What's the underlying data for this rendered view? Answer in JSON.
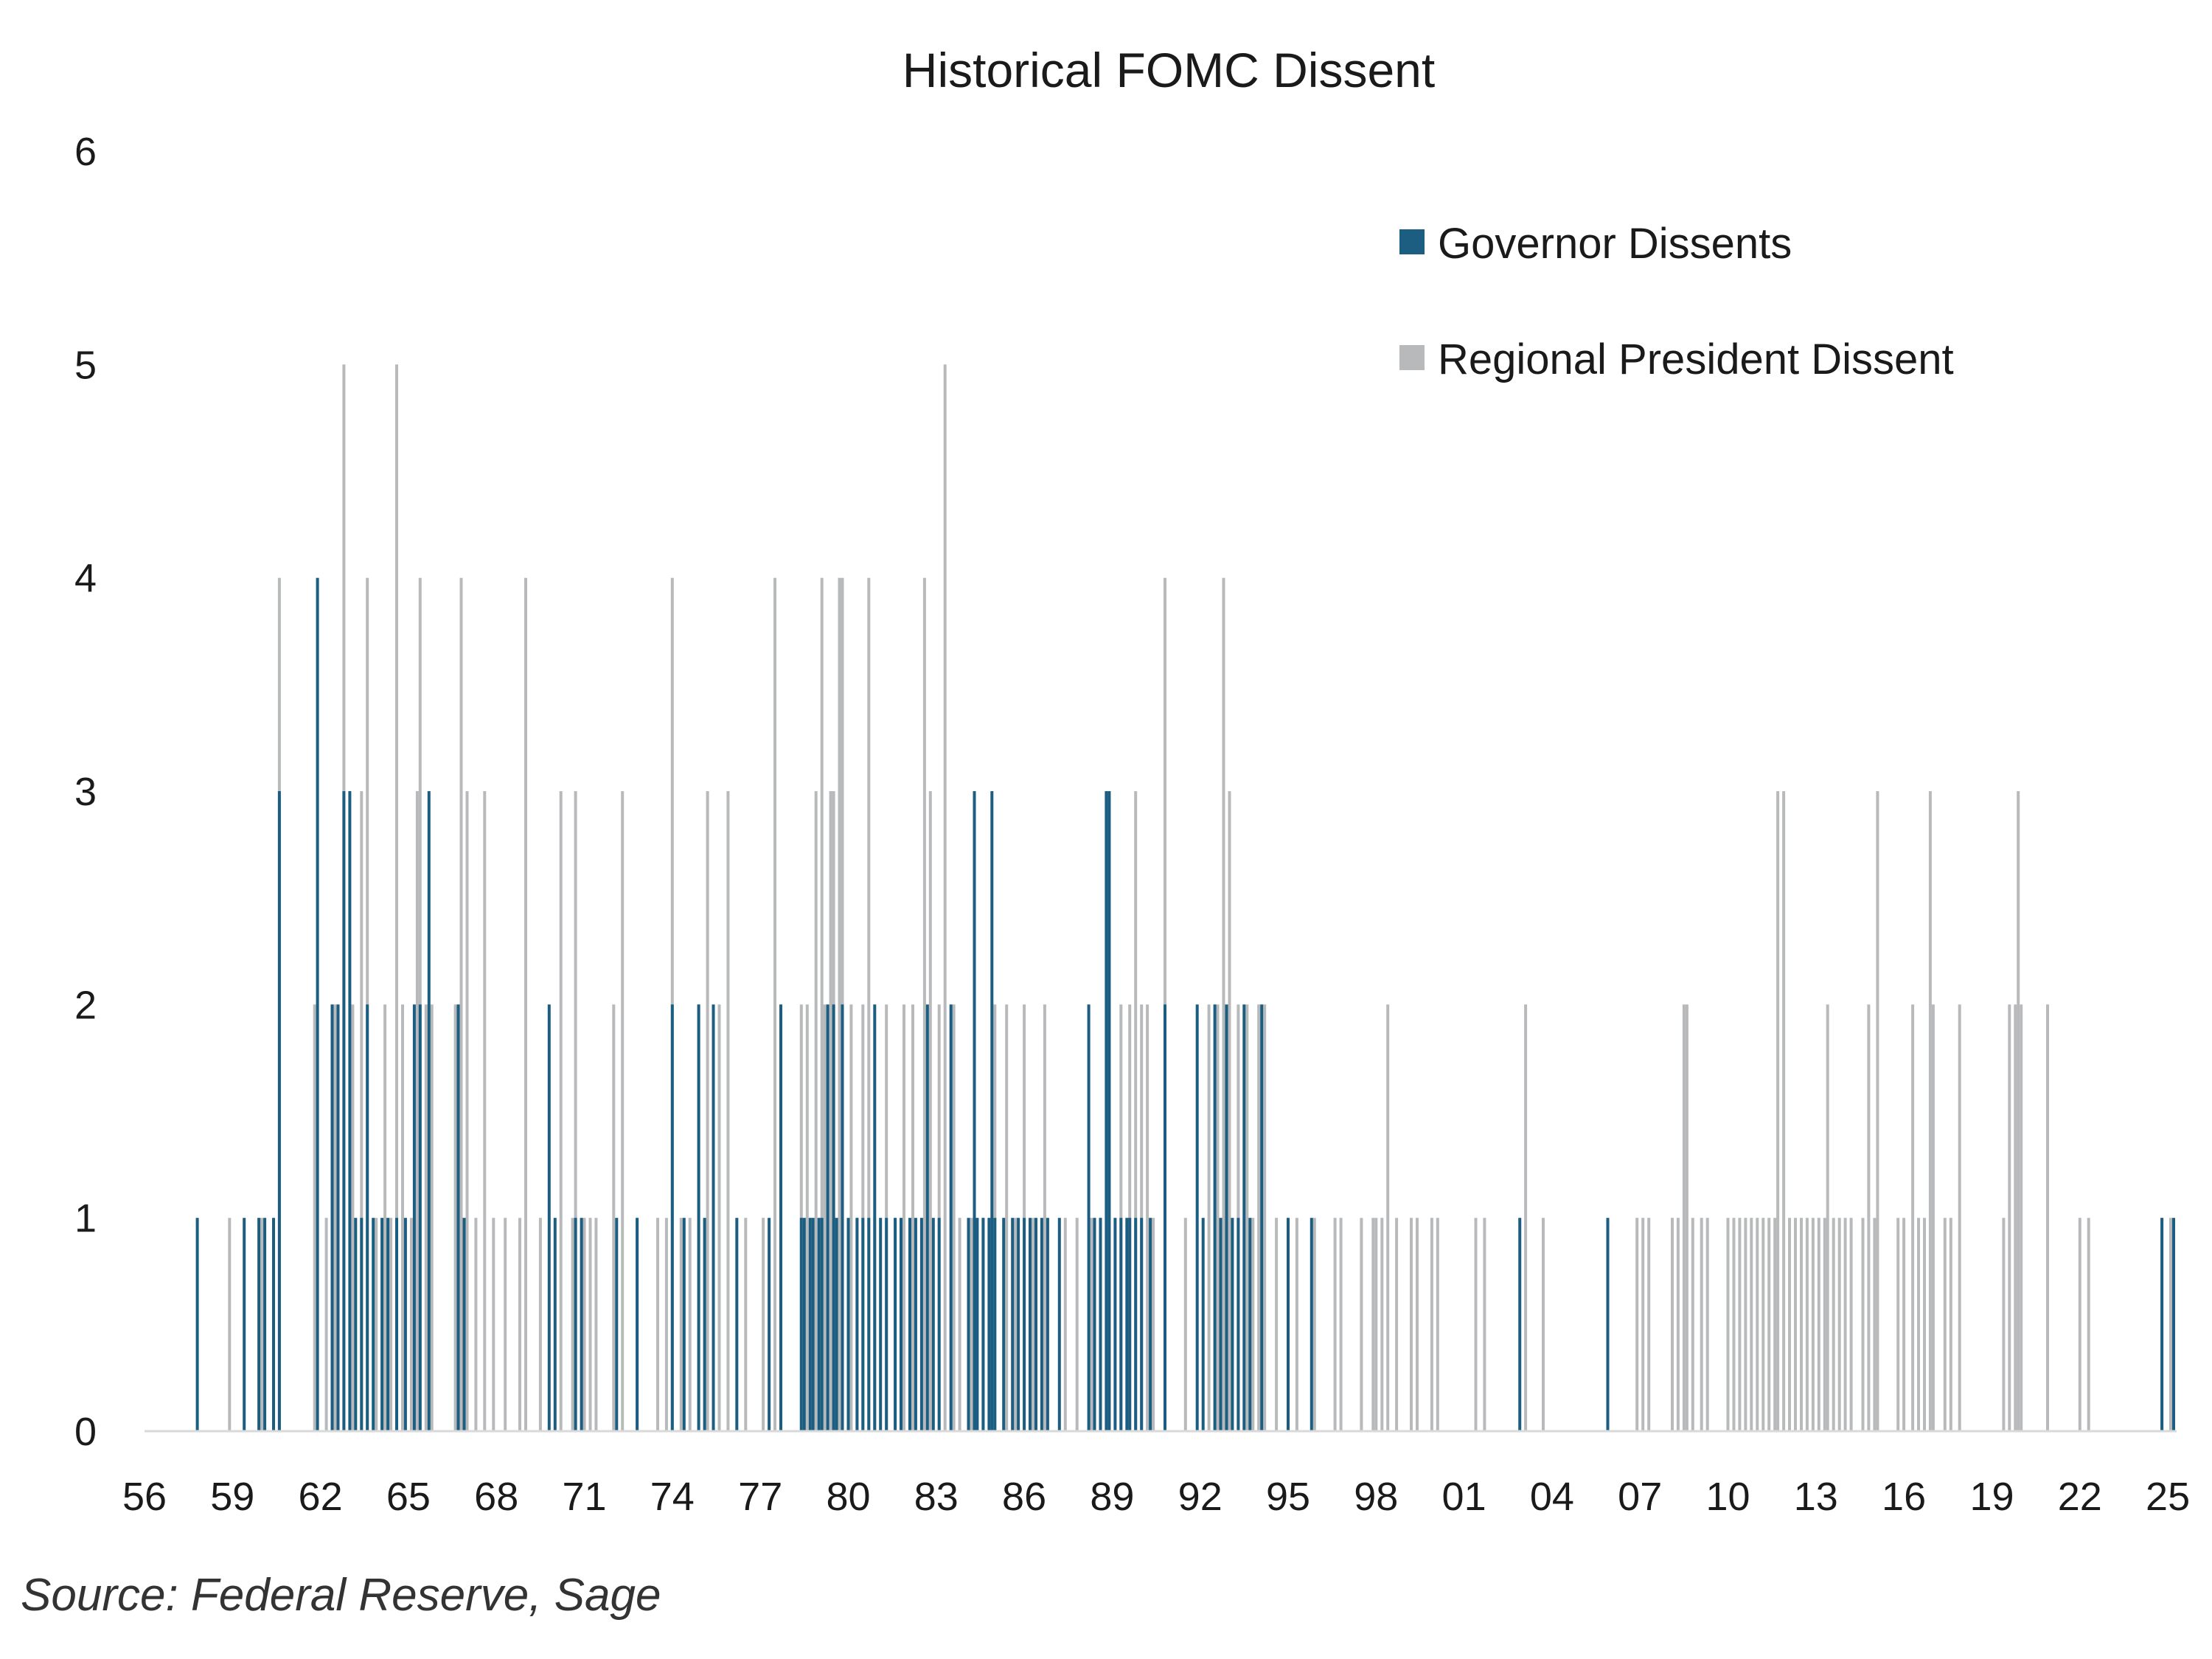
{
  "chart_data": {
    "type": "bar",
    "title": "Historical FOMC Dissent",
    "xlabel": "",
    "ylabel": "",
    "ylim": [
      0,
      6
    ],
    "y_ticks": [
      "0",
      "1",
      "2",
      "3",
      "4",
      "5",
      "6"
    ],
    "xlim": [
      1956,
      2025.3
    ],
    "x_ticks": [
      {
        "year": 1956,
        "label": "56"
      },
      {
        "year": 1959,
        "label": "59"
      },
      {
        "year": 1962,
        "label": "62"
      },
      {
        "year": 1965,
        "label": "65"
      },
      {
        "year": 1968,
        "label": "68"
      },
      {
        "year": 1971,
        "label": "71"
      },
      {
        "year": 1974,
        "label": "74"
      },
      {
        "year": 1977,
        "label": "77"
      },
      {
        "year": 1980,
        "label": "80"
      },
      {
        "year": 1983,
        "label": "83"
      },
      {
        "year": 1986,
        "label": "86"
      },
      {
        "year": 1989,
        "label": "89"
      },
      {
        "year": 1992,
        "label": "92"
      },
      {
        "year": 1995,
        "label": "95"
      },
      {
        "year": 1998,
        "label": "98"
      },
      {
        "year": 2001,
        "label": "01"
      },
      {
        "year": 2004,
        "label": "04"
      },
      {
        "year": 2007,
        "label": "07"
      },
      {
        "year": 2010,
        "label": "10"
      },
      {
        "year": 2013,
        "label": "13"
      },
      {
        "year": 2016,
        "label": "16"
      },
      {
        "year": 2019,
        "label": "19"
      },
      {
        "year": 2022,
        "label": "22"
      },
      {
        "year": 2025,
        "label": "25"
      }
    ],
    "grid": false,
    "legend_position": "top-right",
    "series": [
      {
        "name": "Regional President Dissent",
        "color": "#b8b9bb",
        "points": [
          [
            1958.9,
            1
          ],
          [
            1960.0,
            1
          ],
          [
            1960.6,
            4
          ],
          [
            1961.8,
            2
          ],
          [
            1962.2,
            1
          ],
          [
            1962.5,
            2
          ],
          [
            1962.8,
            5
          ],
          [
            1963.1,
            2
          ],
          [
            1963.4,
            3
          ],
          [
            1963.6,
            4
          ],
          [
            1963.9,
            1
          ],
          [
            1964.2,
            2
          ],
          [
            1964.4,
            1
          ],
          [
            1964.6,
            5
          ],
          [
            1964.8,
            2
          ],
          [
            1965.1,
            1
          ],
          [
            1965.3,
            3
          ],
          [
            1965.4,
            4
          ],
          [
            1965.6,
            2
          ],
          [
            1965.8,
            2
          ],
          [
            1966.6,
            2
          ],
          [
            1966.8,
            4
          ],
          [
            1967.0,
            3
          ],
          [
            1967.3,
            1
          ],
          [
            1967.6,
            3
          ],
          [
            1967.9,
            1
          ],
          [
            1968.3,
            1
          ],
          [
            1968.8,
            1
          ],
          [
            1969.0,
            4
          ],
          [
            1969.5,
            1
          ],
          [
            1970.2,
            3
          ],
          [
            1970.6,
            1
          ],
          [
            1970.7,
            3
          ],
          [
            1971.0,
            1
          ],
          [
            1971.2,
            1
          ],
          [
            1971.4,
            1
          ],
          [
            1972.0,
            2
          ],
          [
            1972.3,
            3
          ],
          [
            1972.8,
            1
          ],
          [
            1973.5,
            1
          ],
          [
            1973.8,
            1
          ],
          [
            1974.0,
            4
          ],
          [
            1974.3,
            1
          ],
          [
            1974.6,
            1
          ],
          [
            1974.9,
            2
          ],
          [
            1975.2,
            3
          ],
          [
            1975.4,
            1
          ],
          [
            1975.6,
            2
          ],
          [
            1975.9,
            3
          ],
          [
            1976.5,
            1
          ],
          [
            1977.1,
            1
          ],
          [
            1977.5,
            4
          ],
          [
            1977.7,
            1
          ],
          [
            1978.4,
            2
          ],
          [
            1978.6,
            2
          ],
          [
            1978.9,
            3
          ],
          [
            1979.1,
            4
          ],
          [
            1979.2,
            2
          ],
          [
            1979.4,
            3
          ],
          [
            1979.5,
            3
          ],
          [
            1979.7,
            4
          ],
          [
            1979.8,
            4
          ],
          [
            1980.1,
            2
          ],
          [
            1980.3,
            1
          ],
          [
            1980.5,
            2
          ],
          [
            1980.7,
            4
          ],
          [
            1980.9,
            1
          ],
          [
            1981.3,
            2
          ],
          [
            1981.6,
            1
          ],
          [
            1981.9,
            2
          ],
          [
            1982.2,
            2
          ],
          [
            1982.6,
            4
          ],
          [
            1982.8,
            3
          ],
          [
            1983.1,
            2
          ],
          [
            1983.3,
            5
          ],
          [
            1983.6,
            2
          ],
          [
            1983.8,
            1
          ],
          [
            1984.2,
            1
          ],
          [
            1984.6,
            1
          ],
          [
            1985.0,
            2
          ],
          [
            1985.4,
            2
          ],
          [
            1985.7,
            1
          ],
          [
            1986.0,
            2
          ],
          [
            1986.3,
            1
          ],
          [
            1986.7,
            2
          ],
          [
            1987.4,
            1
          ],
          [
            1987.8,
            1
          ],
          [
            1988.3,
            1
          ],
          [
            1988.6,
            1
          ],
          [
            1988.9,
            3
          ],
          [
            1989.3,
            2
          ],
          [
            1989.6,
            2
          ],
          [
            1989.8,
            3
          ],
          [
            1990.0,
            2
          ],
          [
            1990.2,
            2
          ],
          [
            1990.4,
            1
          ],
          [
            1990.8,
            4
          ],
          [
            1991.5,
            1
          ],
          [
            1992.3,
            2
          ],
          [
            1992.6,
            2
          ],
          [
            1992.8,
            4
          ],
          [
            1993.0,
            3
          ],
          [
            1993.3,
            2
          ],
          [
            1993.6,
            2
          ],
          [
            1993.8,
            1
          ],
          [
            1994.0,
            2
          ],
          [
            1994.2,
            2
          ],
          [
            1994.6,
            1
          ],
          [
            1995.0,
            1
          ],
          [
            1995.3,
            1
          ],
          [
            1995.9,
            1
          ],
          [
            1996.6,
            1
          ],
          [
            1996.8,
            1
          ],
          [
            1997.5,
            1
          ],
          [
            1997.9,
            1
          ],
          [
            1998.0,
            1
          ],
          [
            1998.2,
            1
          ],
          [
            1998.4,
            2
          ],
          [
            1998.7,
            1
          ],
          [
            1999.2,
            1
          ],
          [
            1999.4,
            1
          ],
          [
            1999.9,
            1
          ],
          [
            2000.1,
            1
          ],
          [
            2001.4,
            1
          ],
          [
            2001.7,
            1
          ],
          [
            2003.1,
            2
          ],
          [
            2003.7,
            1
          ],
          [
            2006.9,
            1
          ],
          [
            2007.1,
            1
          ],
          [
            2007.3,
            1
          ],
          [
            2008.1,
            1
          ],
          [
            2008.3,
            1
          ],
          [
            2008.5,
            2
          ],
          [
            2008.6,
            2
          ],
          [
            2008.8,
            1
          ],
          [
            2009.1,
            1
          ],
          [
            2009.3,
            1
          ],
          [
            2010.0,
            1
          ],
          [
            2010.2,
            1
          ],
          [
            2010.4,
            1
          ],
          [
            2010.6,
            1
          ],
          [
            2010.8,
            1
          ],
          [
            2011.0,
            1
          ],
          [
            2011.2,
            1
          ],
          [
            2011.4,
            1
          ],
          [
            2011.6,
            1
          ],
          [
            2011.7,
            3
          ],
          [
            2011.9,
            3
          ],
          [
            2012.1,
            1
          ],
          [
            2012.3,
            1
          ],
          [
            2012.5,
            1
          ],
          [
            2012.7,
            1
          ],
          [
            2012.9,
            1
          ],
          [
            2013.1,
            1
          ],
          [
            2013.3,
            1
          ],
          [
            2013.4,
            2
          ],
          [
            2013.6,
            1
          ],
          [
            2013.8,
            1
          ],
          [
            2014.0,
            1
          ],
          [
            2014.2,
            1
          ],
          [
            2014.6,
            1
          ],
          [
            2014.8,
            2
          ],
          [
            2015.0,
            1
          ],
          [
            2015.1,
            3
          ],
          [
            2015.8,
            1
          ],
          [
            2016.0,
            1
          ],
          [
            2016.3,
            2
          ],
          [
            2016.5,
            1
          ],
          [
            2016.7,
            1
          ],
          [
            2016.9,
            3
          ],
          [
            2017.0,
            2
          ],
          [
            2017.4,
            1
          ],
          [
            2017.6,
            1
          ],
          [
            2017.9,
            2
          ],
          [
            2019.4,
            1
          ],
          [
            2019.6,
            2
          ],
          [
            2019.8,
            2
          ],
          [
            2019.9,
            3
          ],
          [
            2020.0,
            2
          ],
          [
            2020.9,
            2
          ],
          [
            2022.0,
            1
          ],
          [
            2022.3,
            1
          ],
          [
            2024.8,
            1
          ],
          [
            2025.1,
            1
          ]
        ]
      },
      {
        "name": "Governor Dissents",
        "color": "#1b5e82",
        "points": [
          [
            1957.8,
            1
          ],
          [
            1959.4,
            1
          ],
          [
            1959.9,
            1
          ],
          [
            1960.1,
            1
          ],
          [
            1960.4,
            1
          ],
          [
            1960.6,
            3
          ],
          [
            1961.9,
            4
          ],
          [
            1962.4,
            2
          ],
          [
            1962.6,
            2
          ],
          [
            1962.8,
            3
          ],
          [
            1963.0,
            3
          ],
          [
            1963.2,
            1
          ],
          [
            1963.4,
            1
          ],
          [
            1963.6,
            2
          ],
          [
            1963.8,
            1
          ],
          [
            1964.1,
            1
          ],
          [
            1964.3,
            1
          ],
          [
            1964.6,
            1
          ],
          [
            1964.9,
            1
          ],
          [
            1965.2,
            2
          ],
          [
            1965.4,
            2
          ],
          [
            1965.7,
            3
          ],
          [
            1966.7,
            2
          ],
          [
            1966.9,
            1
          ],
          [
            1969.8,
            2
          ],
          [
            1970.0,
            1
          ],
          [
            1970.7,
            1
          ],
          [
            1970.9,
            1
          ],
          [
            1972.1,
            1
          ],
          [
            1972.8,
            1
          ],
          [
            1974.0,
            2
          ],
          [
            1974.4,
            1
          ],
          [
            1974.9,
            2
          ],
          [
            1975.1,
            1
          ],
          [
            1975.4,
            2
          ],
          [
            1976.2,
            1
          ],
          [
            1977.3,
            1
          ],
          [
            1977.7,
            2
          ],
          [
            1978.4,
            1
          ],
          [
            1978.5,
            1
          ],
          [
            1978.7,
            1
          ],
          [
            1978.8,
            1
          ],
          [
            1979.0,
            1
          ],
          [
            1979.1,
            1
          ],
          [
            1979.3,
            2
          ],
          [
            1979.5,
            2
          ],
          [
            1979.6,
            1
          ],
          [
            1979.8,
            2
          ],
          [
            1980.0,
            1
          ],
          [
            1980.3,
            1
          ],
          [
            1980.5,
            1
          ],
          [
            1980.7,
            1
          ],
          [
            1980.9,
            2
          ],
          [
            1981.1,
            1
          ],
          [
            1981.3,
            1
          ],
          [
            1981.6,
            1
          ],
          [
            1981.8,
            1
          ],
          [
            1982.1,
            1
          ],
          [
            1982.3,
            1
          ],
          [
            1982.5,
            1
          ],
          [
            1982.7,
            2
          ],
          [
            1982.9,
            1
          ],
          [
            1983.1,
            1
          ],
          [
            1983.5,
            2
          ],
          [
            1984.1,
            1
          ],
          [
            1984.3,
            3
          ],
          [
            1984.4,
            1
          ],
          [
            1984.6,
            1
          ],
          [
            1984.8,
            1
          ],
          [
            1984.9,
            3
          ],
          [
            1985.0,
            1
          ],
          [
            1985.3,
            1
          ],
          [
            1985.6,
            1
          ],
          [
            1985.8,
            1
          ],
          [
            1986.0,
            1
          ],
          [
            1986.2,
            1
          ],
          [
            1986.4,
            1
          ],
          [
            1986.6,
            1
          ],
          [
            1986.8,
            1
          ],
          [
            1987.2,
            1
          ],
          [
            1988.2,
            2
          ],
          [
            1988.4,
            1
          ],
          [
            1988.6,
            1
          ],
          [
            1988.8,
            3
          ],
          [
            1988.9,
            3
          ],
          [
            1989.1,
            1
          ],
          [
            1989.3,
            1
          ],
          [
            1989.5,
            1
          ],
          [
            1989.6,
            1
          ],
          [
            1989.8,
            1
          ],
          [
            1990.0,
            1
          ],
          [
            1990.3,
            1
          ],
          [
            1990.8,
            2
          ],
          [
            1991.9,
            2
          ],
          [
            1992.1,
            1
          ],
          [
            1992.5,
            2
          ],
          [
            1992.7,
            1
          ],
          [
            1992.9,
            2
          ],
          [
            1993.1,
            1
          ],
          [
            1993.3,
            1
          ],
          [
            1993.5,
            2
          ],
          [
            1993.7,
            1
          ],
          [
            1994.1,
            2
          ],
          [
            1995.0,
            1
          ],
          [
            1995.8,
            1
          ],
          [
            2002.9,
            1
          ],
          [
            2005.9,
            1
          ],
          [
            2024.8,
            1
          ],
          [
            2025.2,
            1
          ]
        ]
      }
    ]
  },
  "source": "Source: Federal Reserve, Sage"
}
